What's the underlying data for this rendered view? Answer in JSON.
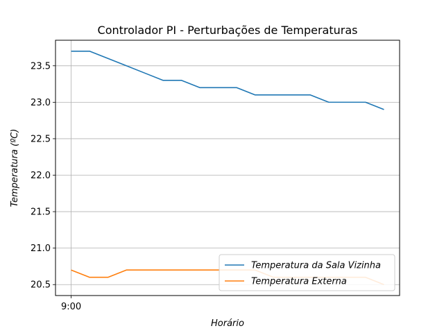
{
  "chart_data": {
    "type": "line",
    "title": "Controlador PI - Perturbações de Temperaturas",
    "xlabel": "Horário",
    "ylabel": "Temperatura (ºC)",
    "ylim": [
      20.35,
      23.85
    ],
    "xlim": [
      -0.85,
      17.85
    ],
    "yticks": [
      20.5,
      21.0,
      21.5,
      22.0,
      22.5,
      23.0,
      23.5
    ],
    "ytick_labels": [
      "20.5",
      "21.0",
      "21.5",
      "22.0",
      "22.5",
      "23.0",
      "23.5"
    ],
    "xticks": [
      {
        "x": 0,
        "label": "9:00"
      }
    ],
    "grid": "horizontal-and-x-tick",
    "legend_position": "lower-right",
    "series": [
      {
        "name": "Temperatura da Sala Vizinha",
        "color": "#1f77b4",
        "x": [
          0,
          1,
          2,
          3,
          4,
          5,
          6,
          7,
          8,
          9,
          10,
          11,
          12,
          13,
          14,
          15,
          16,
          17
        ],
        "values": [
          23.7,
          23.7,
          23.6,
          23.5,
          23.4,
          23.3,
          23.3,
          23.2,
          23.2,
          23.2,
          23.1,
          23.1,
          23.1,
          23.1,
          23.0,
          23.0,
          23.0,
          22.9
        ]
      },
      {
        "name": "Temperatura Externa",
        "color": "#ff7f0e",
        "x": [
          0,
          1,
          2,
          3,
          4,
          5,
          6,
          7,
          8,
          9,
          10,
          11,
          12,
          13,
          14,
          15,
          16,
          17
        ],
        "values": [
          20.7,
          20.6,
          20.6,
          20.7,
          20.7,
          20.7,
          20.7,
          20.7,
          20.7,
          20.7,
          20.7,
          20.6,
          20.6,
          20.6,
          20.6,
          20.6,
          20.6,
          20.5
        ]
      }
    ]
  }
}
